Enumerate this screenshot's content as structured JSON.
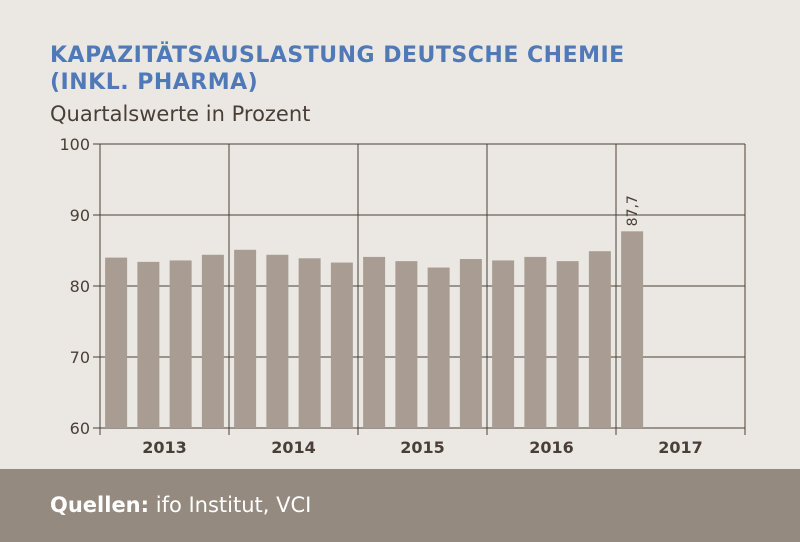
{
  "title_line1": "KAPAZITÄTSAUSLASTUNG DEUTSCHE CHEMIE",
  "title_line2": "(INKL. PHARMA)",
  "subtitle": "Quartalswerte in Prozent",
  "source_label": "Quellen:",
  "source_text": "ifo Institut, VCI",
  "colors": {
    "title": "#4f79b7",
    "bar": "#a89c93",
    "axis": "#4a3f36",
    "background": "#ebe8e4",
    "footer": "#958a7f"
  },
  "chart_data": {
    "type": "bar",
    "title": "KAPAZITÄTSAUSLASTUNG DEUTSCHE CHEMIE (INKL. PHARMA)",
    "ylabel": "Quartalswerte in Prozent",
    "xlabel": "",
    "ylim": [
      60,
      100
    ],
    "yticks": [
      60,
      70,
      80,
      90,
      100
    ],
    "grid": true,
    "year_groups": [
      "2013",
      "2014",
      "2015",
      "2016",
      "2017"
    ],
    "categories": [
      "Q1 2013",
      "Q2 2013",
      "Q3 2013",
      "Q4 2013",
      "Q1 2014",
      "Q2 2014",
      "Q3 2014",
      "Q4 2014",
      "Q1 2015",
      "Q2 2015",
      "Q3 2015",
      "Q4 2015",
      "Q1 2016",
      "Q2 2016",
      "Q3 2016",
      "Q4 2016",
      "Q1 2017"
    ],
    "values": [
      84.0,
      83.4,
      83.6,
      84.4,
      85.1,
      84.4,
      83.9,
      83.3,
      84.1,
      83.5,
      82.6,
      83.8,
      83.6,
      84.1,
      83.5,
      84.9,
      87.7
    ],
    "annotations": [
      {
        "index": 16,
        "text": "87,7"
      }
    ]
  }
}
